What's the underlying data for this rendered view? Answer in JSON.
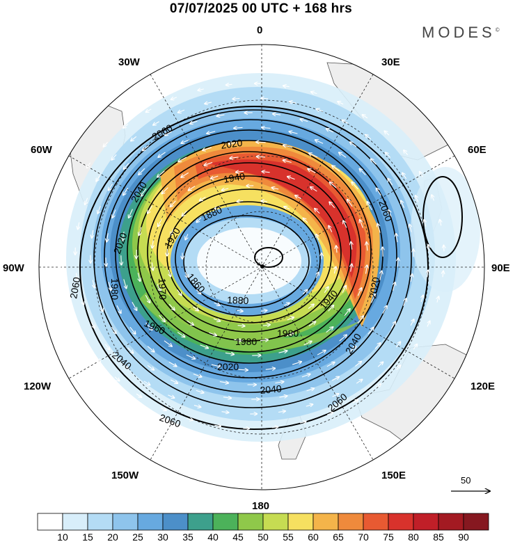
{
  "header": {
    "title": "07/07/2025  00 UTC  + 168 hrs",
    "brand": "MODES",
    "brand_mark": "©"
  },
  "map": {
    "projection": "south-polar-stereographic",
    "longitude_labels": {
      "top": "0",
      "top_left": "30W",
      "top_right": "30E",
      "upper_left": "60W",
      "upper_right": "60E",
      "left": "90W",
      "right": "90E",
      "lower_left": "120W",
      "lower_right": "120E",
      "bottom_left": "150W",
      "bottom_right": "150E",
      "bottom": "180"
    },
    "contour_labels": [
      "2060",
      "2020",
      "1940",
      "2040",
      "1880",
      "1920",
      "2020",
      "1860",
      "1980",
      "1970",
      "1960",
      "1880",
      "1980",
      "1980",
      "1940",
      "2020",
      "2040",
      "2060",
      "2040",
      "2020",
      "2040",
      "2060",
      "2060",
      "2060"
    ],
    "reference_vector": "50"
  },
  "colorbar": {
    "labels": [
      "10",
      "15",
      "20",
      "25",
      "30",
      "35",
      "40",
      "45",
      "50",
      "55",
      "60",
      "65",
      "70",
      "75",
      "80",
      "85",
      "90"
    ],
    "colors": [
      "#ffffff",
      "#d8eefa",
      "#b4dcf5",
      "#8ec4ec",
      "#67a9e0",
      "#4c8fc9",
      "#3da08c",
      "#4cb25a",
      "#8fc84a",
      "#c6dc52",
      "#f6e060",
      "#f4b44a",
      "#ef8a3c",
      "#e85a32",
      "#d8322c",
      "#c01f28",
      "#a31a22",
      "#861820"
    ]
  }
}
